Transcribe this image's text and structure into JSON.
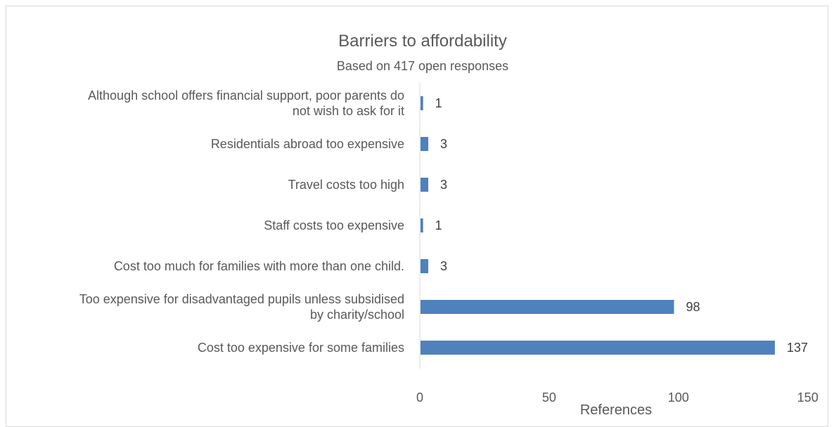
{
  "chart_data": {
    "type": "bar",
    "orientation": "horizontal",
    "title": "Barriers to affordability",
    "subtitle": "Based on 417 open responses",
    "xlabel": "References",
    "ylabel": "",
    "xlim": [
      0,
      150
    ],
    "xticks": [
      0,
      50,
      100,
      150
    ],
    "grid": false,
    "legend": "none",
    "bar_color": "#4F81BD",
    "categories": [
      [
        "Although school offers financial support, poor parents do",
        "not wish to ask for it"
      ],
      [
        "Residentials abroad too expensive"
      ],
      [
        "Travel costs too high"
      ],
      [
        "Staff costs too expensive"
      ],
      [
        "Cost too much for families with more than one child."
      ],
      [
        "Too expensive for disadvantaged pupils unless subsidised",
        "by charity/school"
      ],
      [
        "Cost too expensive for some families"
      ]
    ],
    "values": [
      1,
      3,
      3,
      1,
      3,
      98,
      137
    ]
  }
}
